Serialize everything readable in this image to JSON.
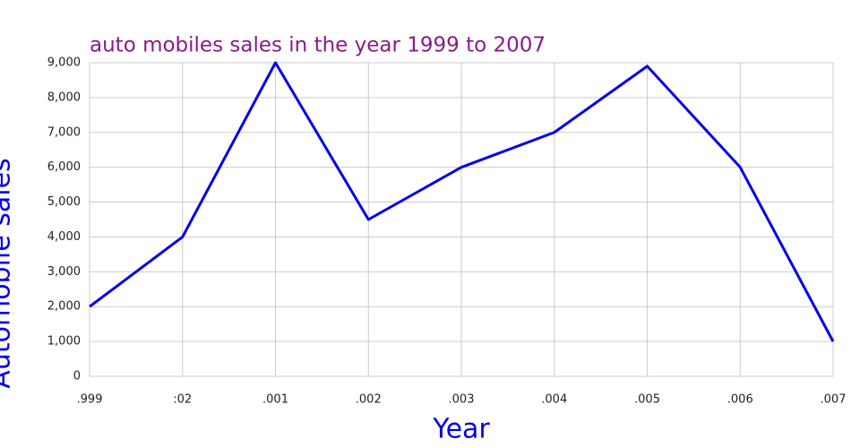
{
  "chart_data": {
    "type": "line",
    "title": "auto mobiles sales in the year 1999 to 2007",
    "x_label": "Year",
    "y_label": "Automobile sales",
    "categories": [
      ".999",
      ":02",
      ".001",
      ".002",
      ".003",
      ".004",
      ".005",
      ".006",
      ".007"
    ],
    "series": [
      {
        "name": "Automobile sales",
        "color": "#0000ee",
        "values": [
          2000,
          4000,
          9000,
          4500,
          6000,
          7000,
          8900,
          6000,
          1000
        ]
      }
    ],
    "ylim": [
      0,
      9000
    ],
    "yticks": [
      0,
      {
        "value": 1000,
        "label": "1,000"
      },
      {
        "value": 2000,
        "label": "2,000"
      },
      {
        "value": 3000,
        "label": "3,000"
      },
      {
        "value": 4000,
        "label": "4,000"
      },
      {
        "value": 5000,
        "label": "5,000"
      },
      {
        "value": 6000,
        "label": "6,000"
      },
      {
        "value": 7000,
        "label": "7,000"
      },
      {
        "value": 8000,
        "label": "8,000"
      },
      {
        "value": 9000,
        "label": "9,000"
      }
    ],
    "grid": true,
    "title_color": "#8b1a8b",
    "axis_label_color": "#0000ee"
  }
}
